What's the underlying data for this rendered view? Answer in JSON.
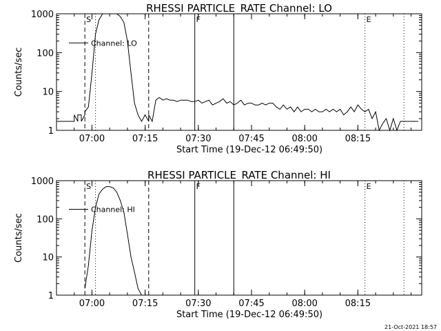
{
  "footer": {
    "timestamp": "21-Oct-2021 18:57"
  },
  "chart_data": [
    {
      "type": "line",
      "title": "RHESSI PARTICLE_RATE Channel: LO",
      "xlabel": "Start Time (19-Dec-12 06:49:50)",
      "ylabel": "Counts/sec",
      "yscale": "log",
      "ylim": [
        1,
        1000
      ],
      "xlim_minutes_since_0650": [
        0,
        103
      ],
      "xticks": [
        "07:00",
        "07:15",
        "07:30",
        "07:45",
        "08:00",
        "08:15"
      ],
      "yticks": [
        "1",
        "10",
        "100",
        "1000"
      ],
      "legend": "Channel: LO",
      "legend_position": "top-left",
      "grid": false,
      "markers": [
        {
          "time": "06:58",
          "style": "dashed",
          "label": "S"
        },
        {
          "time": "07:01",
          "style": "dotted",
          "label": ""
        },
        {
          "time": "07:16",
          "style": "dashed",
          "label": ""
        },
        {
          "time": "07:29",
          "style": "solid",
          "label": "F"
        },
        {
          "time": "07:40",
          "style": "solid",
          "label": ""
        },
        {
          "time": "08:17",
          "style": "dotted",
          "label": "E"
        },
        {
          "time": "08:28",
          "style": "dotted",
          "label": ""
        }
      ],
      "series": [
        {
          "name": "Channel: LO",
          "x": [
            "06:50",
            "06:55",
            "06:55",
            "06:56",
            "06:56",
            "06:57",
            "06:57",
            "06:58",
            "06:58",
            "06:59",
            "07:00",
            "07:01",
            "07:02",
            "07:03",
            "07:04",
            "07:05",
            "07:06",
            "07:07",
            "07:08",
            "07:09",
            "07:10",
            "07:11",
            "07:12",
            "07:13",
            "07:14",
            "07:15",
            "07:16",
            "07:16",
            "07:17",
            "07:17",
            "07:18",
            "07:19",
            "07:20",
            "07:21",
            "07:22",
            "07:23",
            "07:24",
            "07:25",
            "07:26",
            "07:27",
            "07:28",
            "07:29",
            "07:30",
            "07:31",
            "07:32",
            "07:33",
            "07:34",
            "07:35",
            "07:36",
            "07:37",
            "07:38",
            "07:39",
            "07:40",
            "07:41",
            "07:42",
            "07:43",
            "07:44",
            "07:45",
            "07:46",
            "07:47",
            "07:48",
            "07:49",
            "07:50",
            "07:51",
            "07:52",
            "07:53",
            "07:54",
            "07:55",
            "07:56",
            "07:57",
            "07:58",
            "07:59",
            "08:00",
            "08:01",
            "08:02",
            "08:03",
            "08:04",
            "08:05",
            "08:06",
            "08:07",
            "08:08",
            "08:09",
            "08:10",
            "08:11",
            "08:12",
            "08:13",
            "08:14",
            "08:15",
            "08:16",
            "08:17",
            "08:18",
            "08:19",
            "08:20",
            "08:21",
            "08:22",
            "08:23",
            "08:24",
            "08:25",
            "08:26",
            "08:27",
            "08:28",
            "08:29",
            "08:30",
            "08:31",
            "08:32"
          ],
          "y": [
            1.7,
            1.7,
            2.5,
            1.7,
            2.5,
            2.5,
            1.7,
            2.5,
            3,
            4,
            30,
            300,
            700,
            1000,
            1000,
            1000,
            1000,
            1000,
            850,
            600,
            200,
            30,
            5,
            2.5,
            1.7,
            2.5,
            1.7,
            2.5,
            1.7,
            1.7,
            6,
            7,
            6,
            6.5,
            6,
            6,
            5.5,
            6,
            6,
            6,
            5.5,
            5.5,
            6,
            5,
            5.5,
            6,
            4.5,
            5,
            5.5,
            6.5,
            5,
            5.5,
            4.5,
            5,
            6,
            4.5,
            5,
            5,
            4.5,
            4.5,
            5,
            4.5,
            5,
            5,
            4,
            3.5,
            4.5,
            3.5,
            4,
            3,
            4,
            3,
            3.5,
            3.5,
            3,
            3.5,
            3,
            3,
            3.5,
            3,
            3.5,
            3,
            3.5,
            2.5,
            3,
            4,
            3,
            4.5,
            3.5,
            3,
            3.5,
            2,
            3,
            1,
            1.5,
            2,
            1,
            2,
            1,
            1.7,
            1.7,
            1.7,
            1.7,
            1.7,
            1.7
          ]
        }
      ]
    },
    {
      "type": "line",
      "title": "RHESSI PARTICLE_RATE Channel: HI",
      "xlabel": "Start Time (19-Dec-12 06:49:50)",
      "ylabel": "Counts/sec",
      "yscale": "log",
      "ylim": [
        1,
        1000
      ],
      "xlim_minutes_since_0650": [
        0,
        103
      ],
      "xticks": [
        "07:00",
        "07:15",
        "07:30",
        "07:45",
        "08:00",
        "08:15"
      ],
      "yticks": [
        "1",
        "10",
        "100",
        "1000"
      ],
      "legend": "Channel: HI",
      "legend_position": "top-left",
      "grid": false,
      "markers": [
        {
          "time": "06:58",
          "style": "dashed",
          "label": "S"
        },
        {
          "time": "07:01",
          "style": "dotted",
          "label": ""
        },
        {
          "time": "07:16",
          "style": "dashed",
          "label": ""
        },
        {
          "time": "07:29",
          "style": "solid",
          "label": "F"
        },
        {
          "time": "07:40",
          "style": "solid",
          "label": ""
        },
        {
          "time": "08:17",
          "style": "dotted",
          "label": "E"
        },
        {
          "time": "08:28",
          "style": "dotted",
          "label": ""
        }
      ],
      "series": [
        {
          "name": "Channel: HI",
          "x": [
            "06:58",
            "06:59",
            "07:00",
            "07:01",
            "07:02",
            "07:03",
            "07:04",
            "07:05",
            "07:06",
            "07:07",
            "07:08",
            "07:09",
            "07:10",
            "07:11",
            "07:12",
            "07:13",
            "07:14"
          ],
          "y": [
            1.5,
            6,
            50,
            200,
            450,
            600,
            700,
            700,
            650,
            500,
            300,
            150,
            40,
            10,
            4,
            1.5,
            1
          ]
        }
      ]
    }
  ]
}
